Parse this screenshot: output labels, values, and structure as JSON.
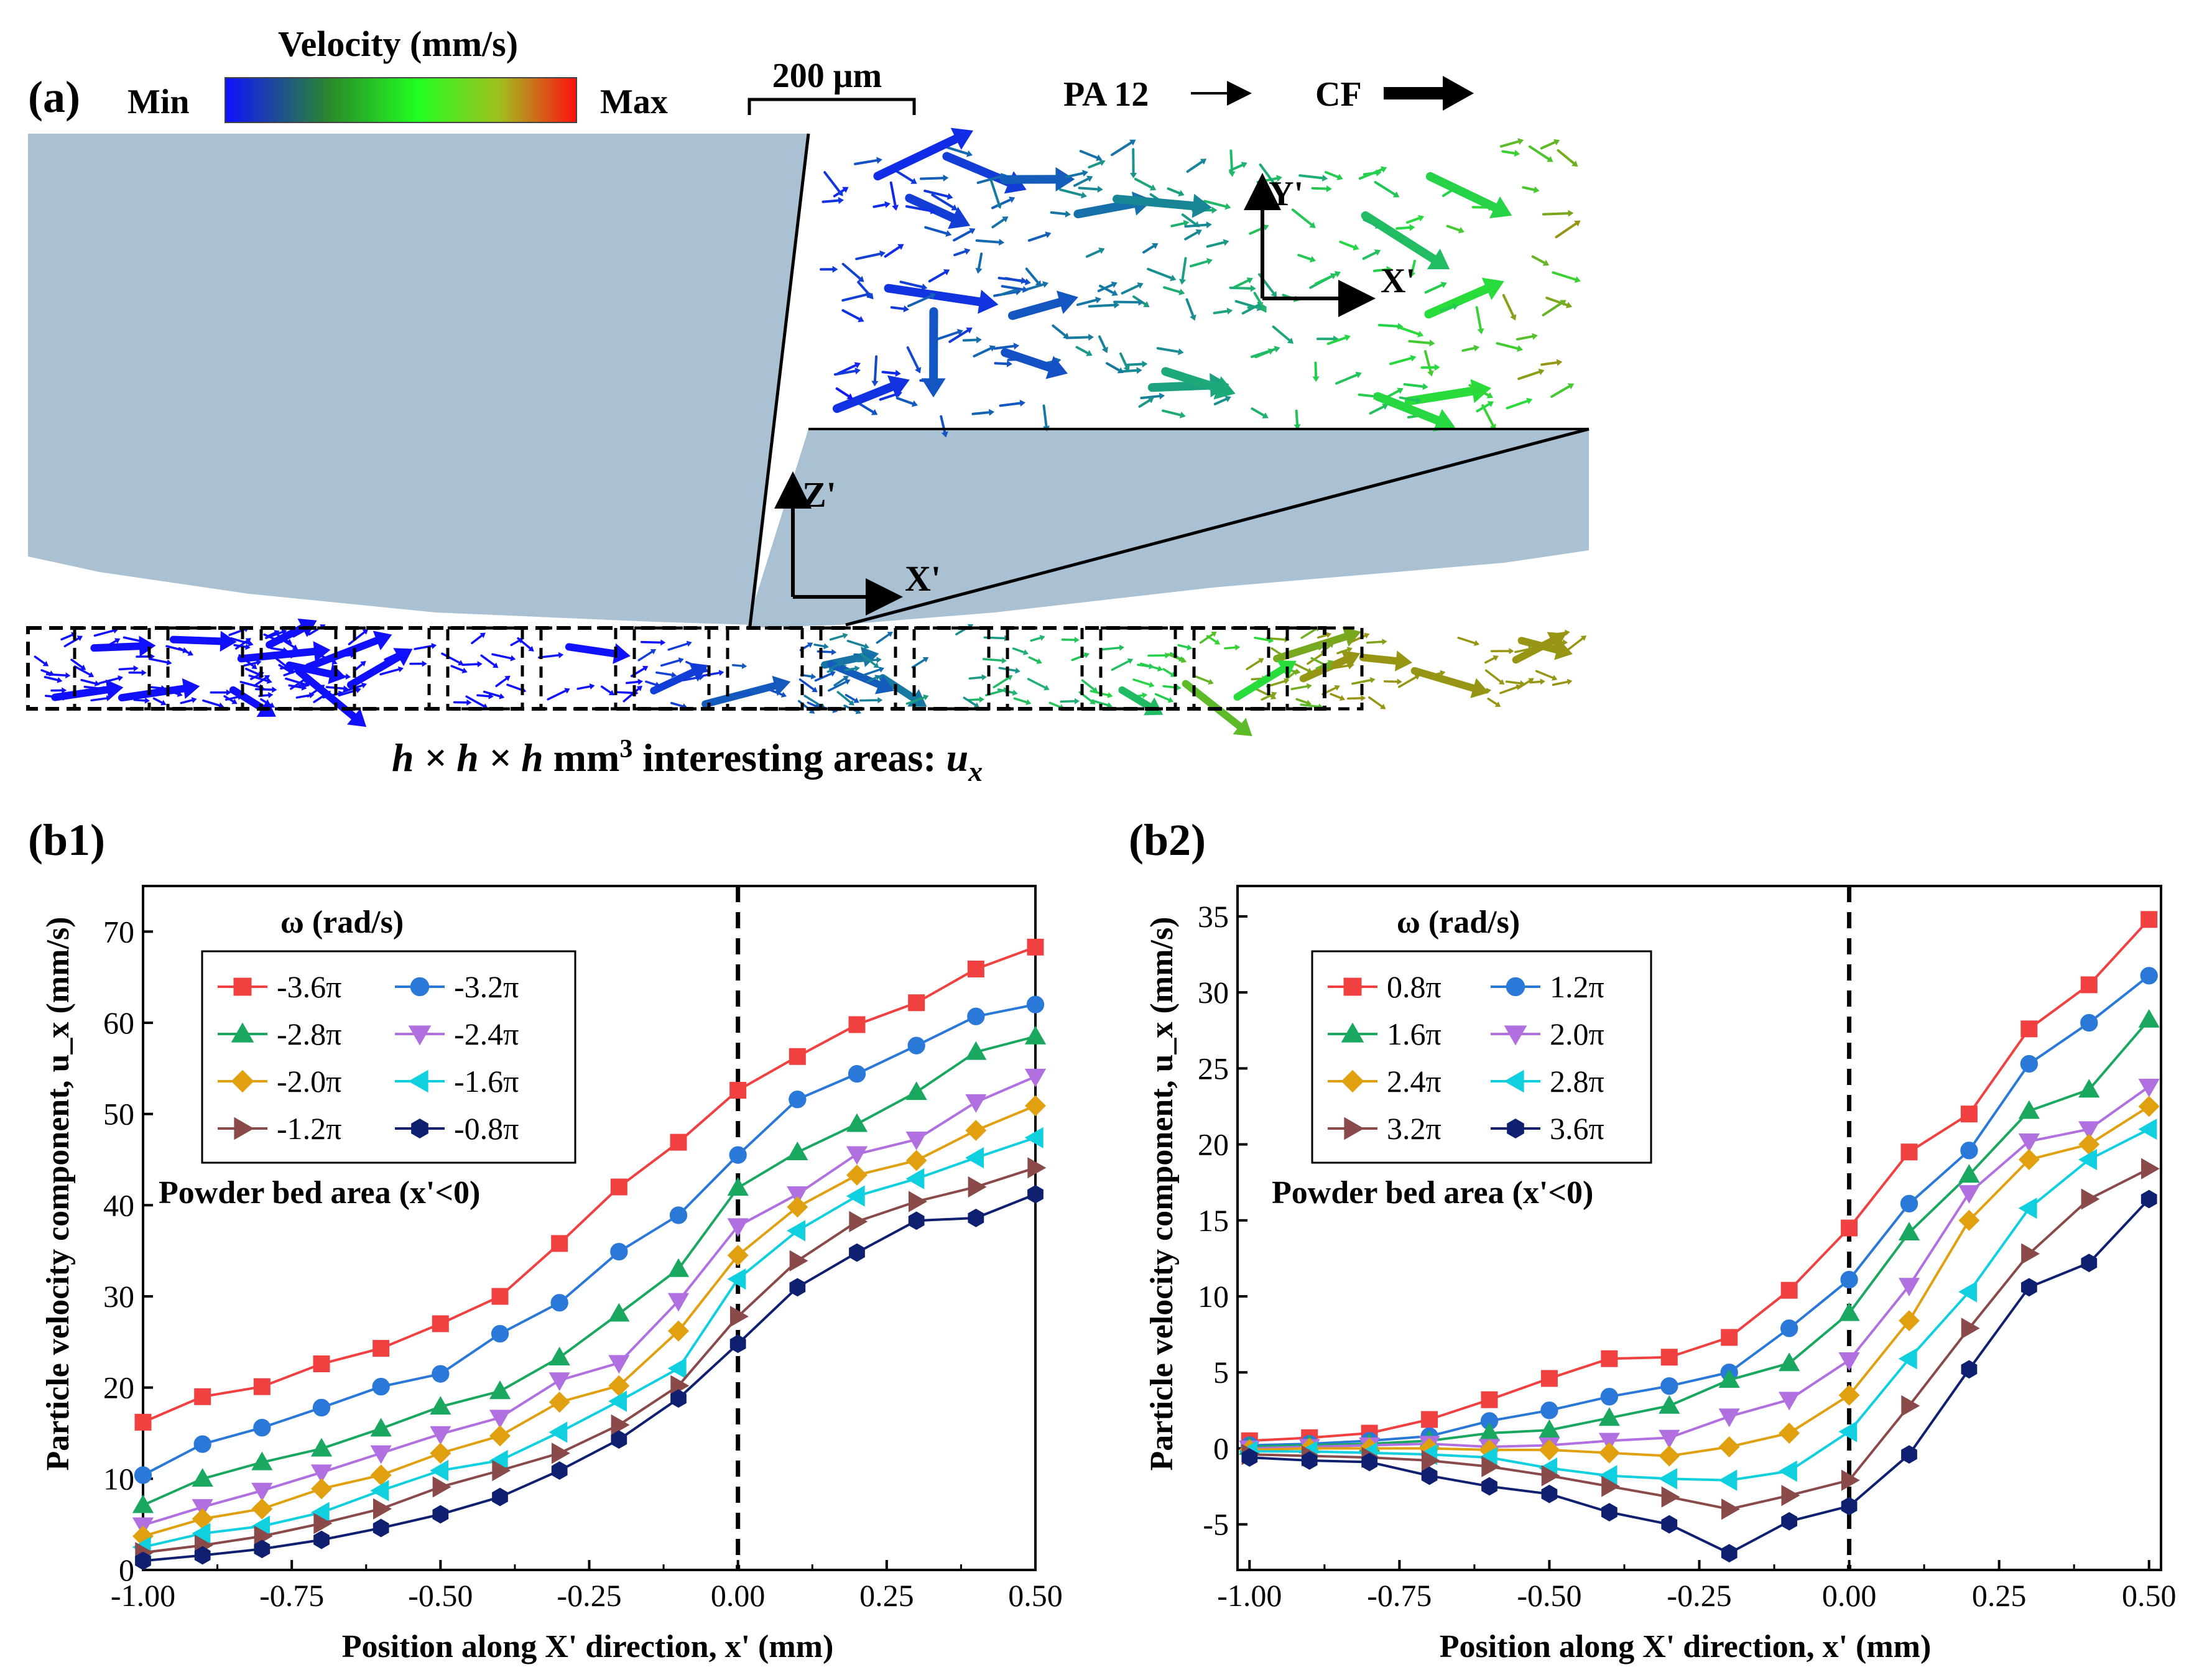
{
  "panel_a": {
    "label": "(a)",
    "colorbar": {
      "title": "Velocity (mm/s)",
      "min_label": "Min",
      "max_label": "Max",
      "colors": [
        "#1010ff",
        "#2a8a2a",
        "#22ff22",
        "#ff1010"
      ]
    },
    "scale_bar": "200 μm",
    "legend_pa": "PA 12",
    "legend_cf": "CF",
    "axis_y_prime": "Y'",
    "axis_x_prime_inset": "X'",
    "axis_z_prime": "Z'",
    "axis_x_prime": "X'",
    "caption_h": "h × h × h",
    "caption_mm": " mm",
    "caption_exp": "3",
    "caption_rest": " interesting areas: ",
    "caption_u": "u",
    "caption_sub": "x"
  },
  "chart_data": [
    {
      "panel": "(b1)",
      "type": "line",
      "xlabel": "Position along X' direction, x' (mm)",
      "ylabel": "Particle velocity component, u_x (mm/s)",
      "xlim": [
        -1.0,
        0.5
      ],
      "ylim": [
        0,
        75
      ],
      "xticks": [
        "-1.00",
        "-0.75",
        "-0.50",
        "-0.25",
        "0.00",
        "0.25",
        "0.50"
      ],
      "yticks": [
        "0",
        "10",
        "20",
        "30",
        "40",
        "50",
        "60",
        "70"
      ],
      "legend_title": "ω (rad/s)",
      "annotation": "Powder bed area (x'<0)",
      "x": [
        -1.0,
        -0.9,
        -0.8,
        -0.7,
        -0.6,
        -0.5,
        -0.4,
        -0.3,
        -0.2,
        -0.1,
        0.0,
        0.1,
        0.2,
        0.3,
        0.4,
        0.5
      ],
      "series": [
        {
          "name": "-3.6π",
          "color": "#f04040",
          "marker": "square",
          "values": [
            16.2,
            19.0,
            20.1,
            22.6,
            24.3,
            27.0,
            30.0,
            35.8,
            42.0,
            46.9,
            52.6,
            56.3,
            59.8,
            62.2,
            65.9,
            68.3
          ]
        },
        {
          "name": "-3.2π",
          "color": "#2a78d8",
          "marker": "circle",
          "values": [
            10.4,
            13.8,
            15.6,
            17.8,
            20.1,
            21.5,
            25.9,
            29.3,
            34.9,
            38.9,
            45.5,
            51.6,
            54.4,
            57.5,
            60.7,
            62.0
          ]
        },
        {
          "name": "-2.8π",
          "color": "#1aa860",
          "marker": "triangle-up",
          "values": [
            7.1,
            10.0,
            11.8,
            13.3,
            15.5,
            17.9,
            19.6,
            23.3,
            28.1,
            33.0,
            41.9,
            45.8,
            48.9,
            52.4,
            56.8,
            58.5
          ]
        },
        {
          "name": "-2.4π",
          "color": "#b070e0",
          "marker": "triangle-down",
          "values": [
            4.9,
            6.9,
            8.7,
            10.7,
            12.8,
            14.9,
            16.7,
            20.8,
            22.7,
            29.5,
            37.7,
            41.2,
            45.6,
            47.2,
            51.3,
            54.1
          ]
        },
        {
          "name": "-2.0π",
          "color": "#e0a010",
          "marker": "diamond",
          "values": [
            3.7,
            5.6,
            6.7,
            8.9,
            10.4,
            12.8,
            14.7,
            18.4,
            20.2,
            26.2,
            34.5,
            39.8,
            43.3,
            44.9,
            48.2,
            50.9
          ]
        },
        {
          "name": "-1.6π",
          "color": "#10d0e0",
          "marker": "triangle-left",
          "values": [
            2.5,
            4.0,
            4.8,
            6.3,
            8.7,
            10.9,
            12.0,
            15.1,
            18.5,
            22.1,
            31.9,
            37.2,
            41.0,
            42.9,
            45.2,
            47.4
          ]
        },
        {
          "name": "-1.2π",
          "color": "#8a4a4a",
          "marker": "triangle-right",
          "values": [
            1.9,
            2.7,
            3.7,
            5.1,
            6.7,
            9.1,
            10.9,
            12.8,
            15.9,
            20.2,
            27.8,
            33.9,
            38.2,
            40.4,
            42.0,
            44.1
          ]
        },
        {
          "name": "-0.8π",
          "color": "#102070",
          "marker": "hexagon",
          "values": [
            1.0,
            1.6,
            2.3,
            3.3,
            4.6,
            6.1,
            8.0,
            10.9,
            14.3,
            18.8,
            24.8,
            31.0,
            34.8,
            38.3,
            38.6,
            41.2
          ]
        }
      ]
    },
    {
      "panel": "(b2)",
      "type": "line",
      "xlabel": "Position along X' direction, x' (mm)",
      "ylabel": "Particle velocity component, u_x (mm/s)",
      "xlim": [
        -1.02,
        0.52
      ],
      "ylim": [
        -8,
        37
      ],
      "xticks": [
        "-1.00",
        "-0.75",
        "-0.50",
        "-0.25",
        "0.00",
        "0.25",
        "0.50"
      ],
      "yticks": [
        "-5",
        "0",
        "5",
        "10",
        "15",
        "20",
        "25",
        "30",
        "35"
      ],
      "legend_title": "ω (rad/s)",
      "annotation": "Powder bed area (x'<0)",
      "x": [
        -1.0,
        -0.9,
        -0.8,
        -0.7,
        -0.6,
        -0.5,
        -0.4,
        -0.3,
        -0.2,
        -0.1,
        0.0,
        0.1,
        0.2,
        0.3,
        0.4,
        0.5
      ],
      "series": [
        {
          "name": "0.8π",
          "color": "#f04040",
          "marker": "square",
          "values": [
            0.5,
            0.7,
            1.0,
            1.9,
            3.2,
            4.6,
            5.9,
            6.0,
            7.3,
            10.4,
            14.5,
            19.5,
            22.0,
            27.6,
            30.5,
            34.8
          ]
        },
        {
          "name": "1.2π",
          "color": "#2a78d8",
          "marker": "circle",
          "values": [
            0.2,
            0.3,
            0.5,
            0.8,
            1.8,
            2.5,
            3.4,
            4.1,
            5.0,
            7.9,
            11.1,
            16.1,
            19.6,
            25.3,
            28.0,
            31.1
          ]
        },
        {
          "name": "1.6π",
          "color": "#1aa860",
          "marker": "triangle-up",
          "values": [
            0.1,
            0.2,
            0.3,
            0.5,
            1.0,
            1.2,
            2.0,
            2.8,
            4.5,
            5.6,
            8.9,
            14.2,
            18.0,
            22.2,
            23.6,
            28.2
          ]
        },
        {
          "name": "2.0π",
          "color": "#b070e0",
          "marker": "triangle-down",
          "values": [
            0.0,
            0.1,
            0.2,
            0.3,
            0.1,
            0.2,
            0.5,
            0.7,
            2.1,
            3.2,
            5.8,
            10.7,
            16.8,
            20.2,
            21.0,
            23.8
          ]
        },
        {
          "name": "2.4π",
          "color": "#e0a010",
          "marker": "diamond",
          "values": [
            -0.1,
            0.0,
            0.0,
            0.0,
            -0.1,
            -0.1,
            -0.3,
            -0.5,
            0.1,
            1.0,
            3.5,
            8.4,
            15.0,
            19.0,
            20.0,
            22.5
          ]
        },
        {
          "name": "2.8π",
          "color": "#10d0e0",
          "marker": "triangle-left",
          "values": [
            -0.2,
            -0.2,
            -0.3,
            -0.4,
            -0.6,
            -1.3,
            -1.8,
            -2.0,
            -2.1,
            -1.5,
            1.1,
            5.9,
            10.3,
            15.8,
            19.0,
            21.0
          ]
        },
        {
          "name": "3.2π",
          "color": "#8a4a4a",
          "marker": "triangle-right",
          "values": [
            -0.4,
            -0.5,
            -0.6,
            -0.8,
            -1.2,
            -1.8,
            -2.5,
            -3.2,
            -4.0,
            -3.1,
            -2.1,
            2.8,
            7.9,
            12.8,
            16.4,
            18.4
          ]
        },
        {
          "name": "3.6π",
          "color": "#102070",
          "marker": "hexagon",
          "values": [
            -0.6,
            -0.8,
            -0.9,
            -1.8,
            -2.5,
            -3.0,
            -4.2,
            -5.0,
            -6.9,
            -4.8,
            -3.8,
            -0.4,
            5.2,
            10.6,
            12.2,
            16.4
          ]
        }
      ]
    }
  ]
}
